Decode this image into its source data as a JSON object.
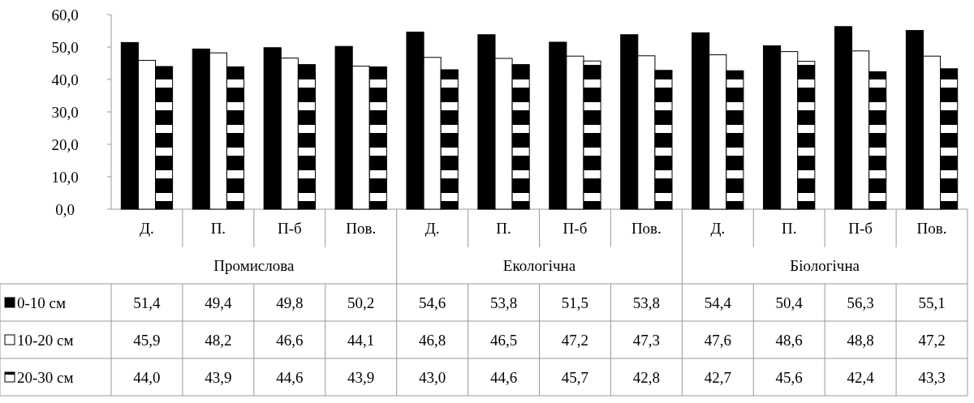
{
  "chart_data": {
    "type": "bar",
    "categories": [
      "Д.",
      "П.",
      "П-б",
      "Пов.",
      "Д.",
      "П.",
      "П-б",
      "Пов.",
      "Д.",
      "П.",
      "П-б",
      "Пов."
    ],
    "annotations": [
      "Промислова",
      "Екологічна",
      "Біологічна"
    ],
    "series": [
      {
        "name": "0-10 см",
        "color": "#000000",
        "values": [
          51.4,
          49.4,
          49.8,
          50.2,
          54.6,
          53.8,
          51.5,
          53.8,
          54.4,
          50.4,
          56.3,
          55.1
        ],
        "value_labels": [
          "51,4",
          "49,4",
          "49,8",
          "50,2",
          "54,6",
          "53,8",
          "51,5",
          "53,8",
          "54,4",
          "50,4",
          "56,3",
          "55,1"
        ]
      },
      {
        "name": "10-20 см",
        "color": "#ffffff",
        "values": [
          45.9,
          48.2,
          46.6,
          44.1,
          46.8,
          46.5,
          47.2,
          47.3,
          47.6,
          48.6,
          48.8,
          47.2
        ],
        "value_labels": [
          "45,9",
          "48,2",
          "46,6",
          "44,1",
          "46,8",
          "46,5",
          "47,2",
          "47,3",
          "47,6",
          "48,6",
          "48,8",
          "47,2"
        ]
      },
      {
        "name": "20-30 см",
        "color": "#000000",
        "values": [
          44.0,
          43.9,
          44.6,
          43.9,
          43.0,
          44.6,
          45.7,
          42.8,
          42.7,
          45.6,
          42.4,
          43.3
        ],
        "value_labels": [
          "44,0",
          "43,9",
          "44,6",
          "43,9",
          "43,0",
          "44,6",
          "45,7",
          "42,8",
          "42,7",
          "45,6",
          "42,4",
          "43,3"
        ]
      }
    ],
    "ylim": [
      0,
      60
    ],
    "yticks": [
      {
        "value": 0,
        "label": "0,0"
      },
      {
        "value": 10,
        "label": "10,0"
      },
      {
        "value": 20,
        "label": "20,0"
      },
      {
        "value": 30,
        "label": "30,0"
      },
      {
        "value": 40,
        "label": "40,0"
      },
      {
        "value": 50,
        "label": "50,0"
      },
      {
        "value": 60,
        "label": "60,0"
      }
    ],
    "legend": "left",
    "grid": false
  }
}
